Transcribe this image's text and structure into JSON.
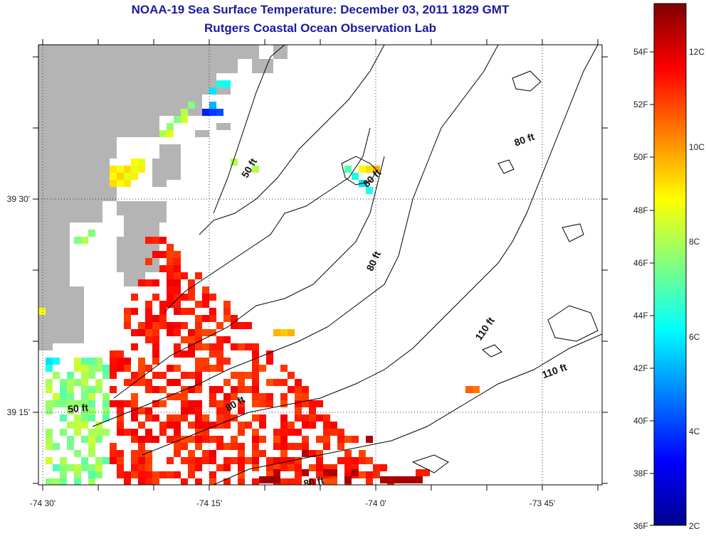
{
  "header": {
    "title": "NOAA-19 Sea Surface Temperature:  December 03, 2011 1829 GMT",
    "subtitle": "Rutgers Coastal Ocean Observation Lab"
  },
  "map": {
    "x_ticks": [
      "-74 30'",
      "-74 15'",
      "-74 0'",
      "-73 45'"
    ],
    "y_ticks": [
      "39 30'",
      "39 15'"
    ],
    "land_color": "#b4b4b4",
    "contour_labels": [
      {
        "id": "lbl-50a",
        "text": "50 ft"
      },
      {
        "id": "lbl-80a",
        "text": "80 ft"
      },
      {
        "id": "lbl-80b",
        "text": "80 ft"
      },
      {
        "id": "lbl-80c",
        "text": "80 ft"
      },
      {
        "id": "lbl-80d",
        "text": "80 ft"
      },
      {
        "id": "lbl-110a",
        "text": "110 ft"
      },
      {
        "id": "lbl-110b",
        "text": "110 ft"
      },
      {
        "id": "lbl-50b",
        "text": "50 ft"
      },
      {
        "id": "lbl-80e",
        "text": "80 ft"
      }
    ]
  },
  "colorbar": {
    "min_c": 2,
    "max_c": 13,
    "fahrenheit_labels": [
      "54F",
      "52F",
      "50F",
      "48F",
      "46F",
      "44F",
      "42F",
      "40F",
      "38F",
      "36F"
    ],
    "celsius_labels": [
      "12C",
      "10C",
      "8C",
      "6C",
      "4C",
      "2C"
    ]
  }
}
